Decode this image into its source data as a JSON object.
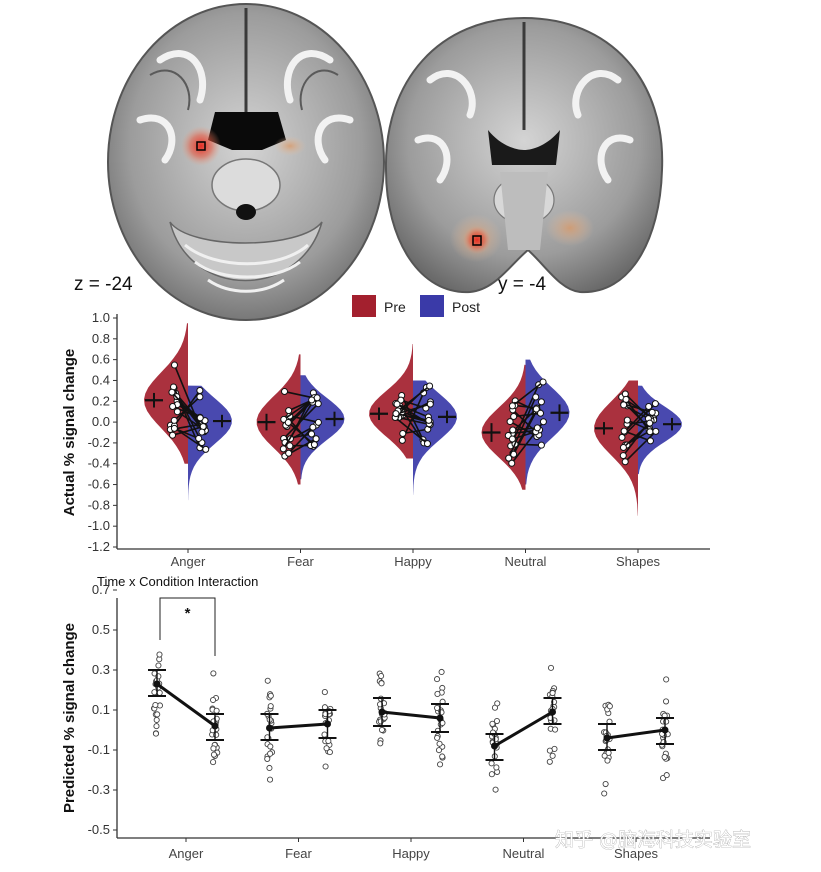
{
  "brain_labels": {
    "axial": "z = -24",
    "coronal": "y = -4"
  },
  "watermark": "知乎 @脑海科技实验室",
  "colors": {
    "pre": "#a3202e",
    "post": "#3a3aa8",
    "axis": "#333333",
    "brain_gray": "#b5b5b5",
    "roi": "#e23b2e"
  },
  "legend": {
    "pre_label": "Pre",
    "post_label": "Post"
  },
  "chart_data": [
    {
      "type": "violin",
      "xlabel": "",
      "ylabel": "Actual % signal change",
      "ylim": [
        -1.2,
        1.0
      ],
      "yticks": [
        "1.0",
        "0.8",
        "0.6",
        "0.4",
        "0.2",
        "0.0",
        "-0.2",
        "-0.4",
        "-0.6",
        "-0.8",
        "-1.0",
        "-1.2"
      ],
      "categories": [
        "Anger",
        "Fear",
        "Happy",
        "Neutral",
        "Shapes"
      ],
      "series": [
        {
          "name": "Pre",
          "means": [
            0.21,
            0.0,
            0.08,
            -0.1,
            -0.06
          ],
          "se": [
            0.07,
            0.08,
            0.06,
            0.09,
            0.06
          ],
          "min": [
            -0.4,
            -0.6,
            -0.35,
            -0.65,
            -0.9
          ],
          "max": [
            0.95,
            0.65,
            0.75,
            0.55,
            0.4
          ]
        },
        {
          "name": "Post",
          "means": [
            0.01,
            0.03,
            0.05,
            0.09,
            -0.02
          ],
          "se": [
            0.06,
            0.07,
            0.06,
            0.08,
            0.06
          ],
          "min": [
            -0.75,
            -0.55,
            -0.7,
            -0.6,
            -0.5
          ],
          "max": [
            0.35,
            0.45,
            0.4,
            0.6,
            0.35
          ]
        }
      ]
    },
    {
      "type": "line",
      "title": "Time x Condition Interaction",
      "xlabel": "",
      "ylabel": "Predicted % signal change",
      "ylim": [
        -0.5,
        0.7
      ],
      "yticks": [
        "0.7",
        "0.5",
        "0.3",
        "0.1",
        "-0.1",
        "-0.3",
        "-0.5"
      ],
      "categories": [
        "Anger",
        "Fear",
        "Happy",
        "Neutral",
        "Shapes"
      ],
      "significance": {
        "category": "Anger",
        "label": "*"
      },
      "series": [
        {
          "name": "Pre",
          "means": [
            0.23,
            0.01,
            0.09,
            -0.08,
            -0.04
          ],
          "ci_low": [
            0.17,
            -0.05,
            0.02,
            -0.15,
            -0.1
          ],
          "ci_high": [
            0.3,
            0.08,
            0.16,
            -0.02,
            0.03
          ]
        },
        {
          "name": "Post",
          "means": [
            0.02,
            0.03,
            0.06,
            0.09,
            0.0
          ],
          "ci_low": [
            -0.05,
            -0.04,
            -0.01,
            0.03,
            -0.07
          ],
          "ci_high": [
            0.08,
            0.1,
            0.13,
            0.16,
            0.06
          ]
        }
      ]
    }
  ]
}
